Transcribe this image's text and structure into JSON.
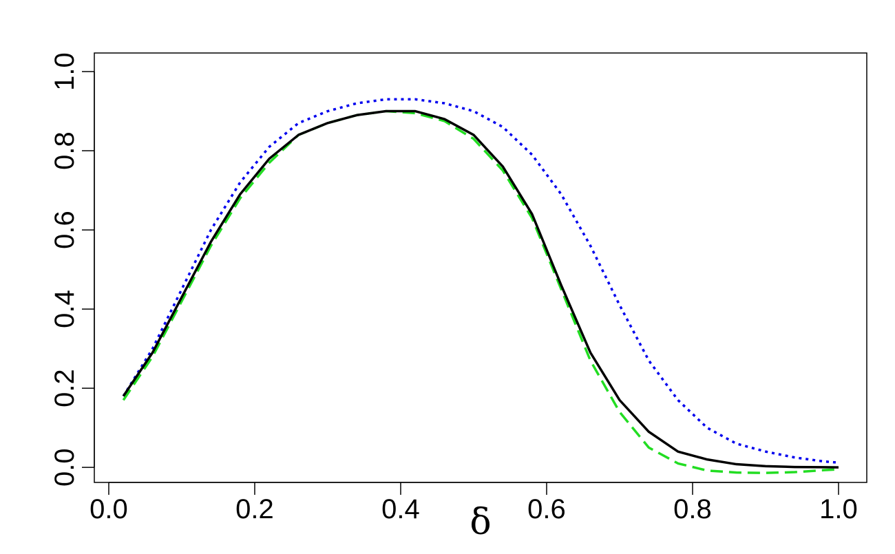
{
  "chart_data": {
    "type": "line",
    "x_label": "δ",
    "x": [
      0.02,
      0.06,
      0.1,
      0.14,
      0.18,
      0.22,
      0.26,
      0.3,
      0.34,
      0.38,
      0.42,
      0.46,
      0.5,
      0.54,
      0.58,
      0.62,
      0.66,
      0.7,
      0.74,
      0.78,
      0.82,
      0.86,
      0.9,
      0.94,
      0.98,
      1.0
    ],
    "series": [
      {
        "color": "#0000ee",
        "dash": "dotted",
        "values": [
          0.18,
          0.3,
          0.45,
          0.6,
          0.72,
          0.81,
          0.87,
          0.9,
          0.92,
          0.93,
          0.93,
          0.92,
          0.9,
          0.86,
          0.79,
          0.69,
          0.56,
          0.41,
          0.27,
          0.17,
          0.1,
          0.06,
          0.04,
          0.025,
          0.015,
          0.012
        ]
      },
      {
        "color": "#22dd22",
        "dash": "dashed",
        "values": [
          0.17,
          0.28,
          0.42,
          0.56,
          0.68,
          0.77,
          0.84,
          0.87,
          0.89,
          0.9,
          0.895,
          0.875,
          0.83,
          0.75,
          0.63,
          0.45,
          0.27,
          0.14,
          0.05,
          0.01,
          -0.008,
          -0.013,
          -0.014,
          -0.012,
          -0.007,
          -0.005
        ]
      },
      {
        "color": "#000000",
        "dash": "solid",
        "values": [
          0.18,
          0.29,
          0.43,
          0.57,
          0.69,
          0.78,
          0.84,
          0.87,
          0.89,
          0.9,
          0.9,
          0.88,
          0.84,
          0.76,
          0.64,
          0.46,
          0.29,
          0.17,
          0.09,
          0.04,
          0.02,
          0.008,
          0.003,
          0.001,
          0.0005,
          0.0
        ]
      }
    ],
    "xlim": [
      -0.0198,
      1.0387
    ],
    "ylim": [
      -0.038,
      1.047
    ],
    "xticks": [
      {
        "value": 0,
        "label": "0.0"
      },
      {
        "value": 0.2,
        "label": "0.2"
      },
      {
        "value": 0.4,
        "label": "0.4"
      },
      {
        "value": 0.6,
        "label": "0.6"
      },
      {
        "value": 0.8,
        "label": "0.8"
      },
      {
        "value": 1,
        "label": "1.0"
      }
    ],
    "yticks": [
      {
        "value": 0,
        "label": "0.0"
      },
      {
        "value": 0.2,
        "label": "0.2"
      },
      {
        "value": 0.4,
        "label": "0.4"
      },
      {
        "value": 0.6,
        "label": "0.6"
      },
      {
        "value": 0.8,
        "label": "0.8"
      },
      {
        "value": 1,
        "label": "1.0"
      }
    ]
  }
}
